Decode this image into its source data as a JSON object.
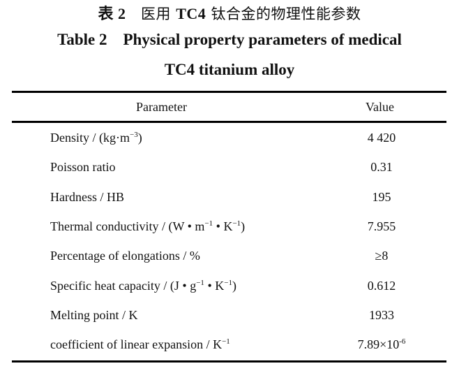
{
  "caption": {
    "cn_label": "表 2",
    "cn_prefix": "医用 ",
    "cn_bold": "TC4",
    "cn_suffix": " 钛合金的物理性能参数",
    "en_line1": "Table 2    Physical property parameters of medical",
    "en_line2": "TC4 titanium alloy"
  },
  "table": {
    "headers": {
      "parameter": "Parameter",
      "value": "Value"
    },
    "rows": [
      {
        "parameter": [
          {
            "t": "Density / (kg·m"
          },
          {
            "sup": "−3"
          },
          {
            "t": ")"
          }
        ],
        "value": [
          {
            "t": "4 420"
          }
        ]
      },
      {
        "parameter": [
          {
            "t": "Poisson ratio"
          }
        ],
        "value": [
          {
            "t": "0.31"
          }
        ]
      },
      {
        "parameter": [
          {
            "t": "Hardness / HB"
          }
        ],
        "value": [
          {
            "t": "195"
          }
        ]
      },
      {
        "parameter": [
          {
            "t": "Thermal conductivity / (W • m"
          },
          {
            "sup": "−1"
          },
          {
            "t": " • K"
          },
          {
            "sup": "−1"
          },
          {
            "t": ")"
          }
        ],
        "value": [
          {
            "t": "7.955"
          }
        ]
      },
      {
        "parameter": [
          {
            "t": "Percentage of elongations / %"
          }
        ],
        "value": [
          {
            "t": "≥8"
          }
        ]
      },
      {
        "parameter": [
          {
            "t": "Specific heat capacity / (J • g"
          },
          {
            "sup": "−1"
          },
          {
            "t": " • K"
          },
          {
            "sup": "−1"
          },
          {
            "t": ")"
          }
        ],
        "value": [
          {
            "t": "0.612"
          }
        ]
      },
      {
        "parameter": [
          {
            "t": "Melting point / K"
          }
        ],
        "value": [
          {
            "t": "1933"
          }
        ]
      },
      {
        "parameter": [
          {
            "t": "coefficient of linear expansion / K"
          },
          {
            "sup": "−1"
          }
        ],
        "value": [
          {
            "t": "7.89×10"
          },
          {
            "sup": "-6"
          }
        ]
      }
    ]
  }
}
